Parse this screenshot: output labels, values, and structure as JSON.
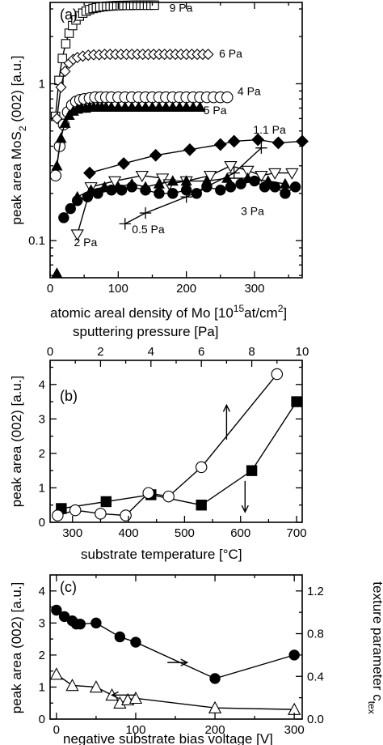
{
  "chart_data": [
    {
      "panel_label": "(a)",
      "type": "scatter",
      "xlabel_parts": [
        "atomic areal density of Mo [10",
        "15",
        "at/cm",
        "2",
        "]"
      ],
      "ylabel_parts": [
        "peak area MoS",
        "2",
        " (002) [a.u.]"
      ],
      "xlim": [
        0,
        370
      ],
      "ylim": [
        0.058,
        3.3
      ],
      "yscale": "log",
      "xticks": [
        0,
        100,
        200,
        300
      ],
      "xtick_labels": [
        "0",
        "100",
        "200",
        "300"
      ],
      "yticks": [
        0.1,
        1
      ],
      "ytick_labels": [
        "0.1",
        "1"
      ],
      "annotations": [
        {
          "text": "9 Pa",
          "x": 175,
          "y": 3.05
        },
        {
          "text": "6 Pa",
          "x": 248,
          "y": 1.56
        },
        {
          "text": "4 Pa",
          "x": 275,
          "y": 0.9
        },
        {
          "text": "5 Pa",
          "x": 225,
          "y": 0.68
        },
        {
          "text": "1.1 Pa",
          "x": 298,
          "y": 0.51
        },
        {
          "text": "3 Pa",
          "x": 280,
          "y": 0.155
        },
        {
          "text": "2 Pa",
          "x": 35,
          "y": 0.098
        },
        {
          "text": "0.5 Pa",
          "x": 120,
          "y": 0.118
        }
      ],
      "series": [
        {
          "marker": "square-open",
          "fit": true,
          "x": [
            8,
            13,
            18,
            23,
            28,
            33,
            38,
            43,
            48,
            53,
            58,
            63,
            68,
            73,
            78,
            83,
            88,
            93,
            98,
            103,
            108,
            113,
            118,
            123,
            128,
            133,
            138,
            143,
            148,
            153
          ],
          "y": [
            0.62,
            1.05,
            1.45,
            1.8,
            2.1,
            2.35,
            2.55,
            2.7,
            2.82,
            2.9,
            2.97,
            3.02,
            3.05,
            3.08,
            3.1,
            3.12,
            3.13,
            3.14,
            3.15,
            3.15,
            3.16,
            3.16,
            3.16,
            3.17,
            3.17,
            3.17,
            3.17,
            3.17,
            3.17,
            3.17
          ]
        },
        {
          "marker": "diamond-open",
          "fit": true,
          "x": [
            10,
            16,
            22,
            28,
            34,
            40,
            48,
            56,
            64,
            72,
            80,
            88,
            96,
            104,
            112,
            120,
            128,
            136,
            144,
            152,
            160,
            168,
            176,
            184,
            192,
            200,
            208,
            216,
            224,
            232
          ],
          "y": [
            0.6,
            0.95,
            1.2,
            1.35,
            1.43,
            1.47,
            1.5,
            1.52,
            1.53,
            1.53,
            1.54,
            1.54,
            1.54,
            1.54,
            1.54,
            1.54,
            1.54,
            1.54,
            1.54,
            1.54,
            1.54,
            1.54,
            1.54,
            1.54,
            1.54,
            1.54,
            1.54,
            1.54,
            1.54,
            1.54
          ]
        },
        {
          "marker": "circle-open",
          "fit": true,
          "x": [
            8,
            14,
            20,
            26,
            32,
            38,
            44,
            50,
            58,
            66,
            74,
            82,
            90,
            100,
            110,
            120,
            130,
            140,
            150,
            160,
            170,
            180,
            190,
            200,
            210,
            220,
            230,
            240,
            250,
            260
          ],
          "y": [
            0.26,
            0.4,
            0.55,
            0.66,
            0.73,
            0.77,
            0.79,
            0.8,
            0.81,
            0.82,
            0.82,
            0.82,
            0.82,
            0.82,
            0.82,
            0.82,
            0.82,
            0.82,
            0.82,
            0.82,
            0.82,
            0.82,
            0.82,
            0.82,
            0.82,
            0.82,
            0.82,
            0.82,
            0.82,
            0.82
          ]
        },
        {
          "marker": "triangle-filled",
          "fit": true,
          "x": [
            10,
            16,
            22,
            28,
            34,
            40,
            46,
            52,
            58,
            64,
            70,
            76,
            82,
            90,
            100,
            110,
            120,
            130,
            140,
            150,
            160,
            170,
            180,
            190,
            200,
            210,
            220
          ],
          "y": [
            0.3,
            0.45,
            0.56,
            0.63,
            0.67,
            0.69,
            0.7,
            0.7,
            0.71,
            0.71,
            0.71,
            0.71,
            0.71,
            0.71,
            0.71,
            0.71,
            0.71,
            0.71,
            0.71,
            0.71,
            0.71,
            0.71,
            0.71,
            0.71,
            0.71,
            0.71,
            0.71
          ]
        },
        {
          "marker": "triangle-filled",
          "fit": false,
          "x": [
            10
          ],
          "y": [
            0.062
          ]
        },
        {
          "marker": "diamond-filled",
          "fit": false,
          "connect": true,
          "x": [
            58,
            108,
            155,
            205,
            250,
            270,
            305,
            335,
            370
          ],
          "y": [
            0.27,
            0.31,
            0.35,
            0.38,
            0.41,
            0.43,
            0.44,
            0.42,
            0.43
          ]
        },
        {
          "marker": "triangle-down-open",
          "fit": false,
          "connect": true,
          "x": [
            40,
            60,
            95,
            135,
            165,
            175,
            200,
            235,
            265,
            290,
            310,
            330,
            355
          ],
          "y": [
            0.11,
            0.22,
            0.24,
            0.26,
            0.25,
            0.23,
            0.24,
            0.26,
            0.3,
            0.28,
            0.26,
            0.27,
            0.27
          ]
        },
        {
          "marker": "plus",
          "fit": false,
          "connect": true,
          "x": [
            110,
            140,
            200,
            270,
            310
          ],
          "y": [
            0.128,
            0.15,
            0.19,
            0.27,
            0.39
          ]
        },
        {
          "marker": "circle-filled",
          "fit": false,
          "connect": true,
          "x": [
            20,
            30,
            40,
            55,
            70,
            90,
            105,
            120,
            140,
            160,
            180,
            200,
            215,
            230,
            250,
            265,
            280,
            300,
            315,
            330,
            345,
            360
          ],
          "y": [
            0.14,
            0.16,
            0.18,
            0.19,
            0.2,
            0.21,
            0.21,
            0.22,
            0.21,
            0.2,
            0.2,
            0.21,
            0.2,
            0.22,
            0.21,
            0.22,
            0.23,
            0.24,
            0.22,
            0.22,
            0.2,
            0.22
          ]
        },
        {
          "marker": "triangle-filled",
          "fit": false,
          "connect": true,
          "x": [
            40,
            60,
            80,
            100,
            120,
            140,
            160,
            180,
            200,
            230,
            260,
            290,
            320,
            345
          ],
          "y": [
            0.19,
            0.21,
            0.22,
            0.22,
            0.23,
            0.22,
            0.23,
            0.24,
            0.24,
            0.24,
            0.25,
            0.25,
            0.24,
            0.23
          ]
        }
      ]
    },
    {
      "panel_label": "(b)",
      "type": "line",
      "xlabel": "substrate temperature [°C]",
      "x2label": "sputtering pressure [Pa]",
      "ylabel": "peak area (002) [a.u.]",
      "xlim": [
        260,
        710
      ],
      "x2lim": [
        0,
        10
      ],
      "ylim": [
        0,
        4.7
      ],
      "xticks": [
        300,
        400,
        500,
        600,
        700
      ],
      "xtick_labels": [
        "300",
        "400",
        "500",
        "600",
        "700"
      ],
      "x2ticks": [
        0,
        2,
        4,
        6,
        8,
        10
      ],
      "x2tick_labels": [
        "0",
        "2",
        "4",
        "6",
        "8",
        "10"
      ],
      "yticks": [
        0,
        1,
        2,
        3,
        4
      ],
      "ytick_labels": [
        "0",
        "1",
        "2",
        "3",
        "4"
      ],
      "series": [
        {
          "marker": "square-filled",
          "axis": "bottom",
          "x": [
            280,
            360,
            440,
            530,
            620,
            700
          ],
          "y": [
            0.4,
            0.6,
            0.8,
            0.5,
            1.5,
            3.5
          ]
        },
        {
          "marker": "circle-open",
          "axis": "top",
          "x": [
            0.3,
            1.0,
            2.0,
            3.0,
            3.9,
            4.7,
            6.0,
            9.0
          ],
          "y": [
            0.2,
            0.35,
            0.25,
            0.2,
            0.85,
            0.75,
            1.6,
            4.3
          ]
        }
      ]
    },
    {
      "panel_label": "(c)",
      "type": "line",
      "xlabel": "negative substrate bias voltage [V]",
      "ylabel": "peak area (002) [a.u.]",
      "y2label_parts": [
        "texture parameter c",
        "tex"
      ],
      "xlim": [
        -8,
        310
      ],
      "ylim": [
        0,
        4.5
      ],
      "y2lim": [
        0,
        1.35
      ],
      "xticks": [
        0,
        100,
        200,
        300
      ],
      "xtick_labels": [
        "0",
        "100",
        "200",
        "300"
      ],
      "yticks": [
        0,
        1,
        2,
        3,
        4
      ],
      "ytick_labels": [
        "0",
        "1",
        "2",
        "3",
        "4"
      ],
      "y2ticks": [
        0,
        0.4,
        0.8,
        1.2
      ],
      "y2tick_labels": [
        "0.0",
        "0.4",
        "0.8",
        "1.2"
      ],
      "series": [
        {
          "marker": "circle-filled",
          "axis": "right",
          "x": [
            0,
            10,
            20,
            25,
            30,
            50,
            80,
            100,
            200,
            300
          ],
          "y": [
            1.02,
            0.96,
            0.92,
            0.89,
            0.89,
            0.9,
            0.77,
            0.72,
            0.38,
            0.6
          ]
        },
        {
          "marker": "triangle-open",
          "axis": "left",
          "x": [
            0,
            20,
            50,
            70,
            80,
            90,
            100,
            200,
            300
          ],
          "y": [
            1.4,
            1.05,
            1.0,
            0.75,
            0.5,
            0.6,
            0.65,
            0.35,
            0.3
          ]
        }
      ]
    }
  ]
}
